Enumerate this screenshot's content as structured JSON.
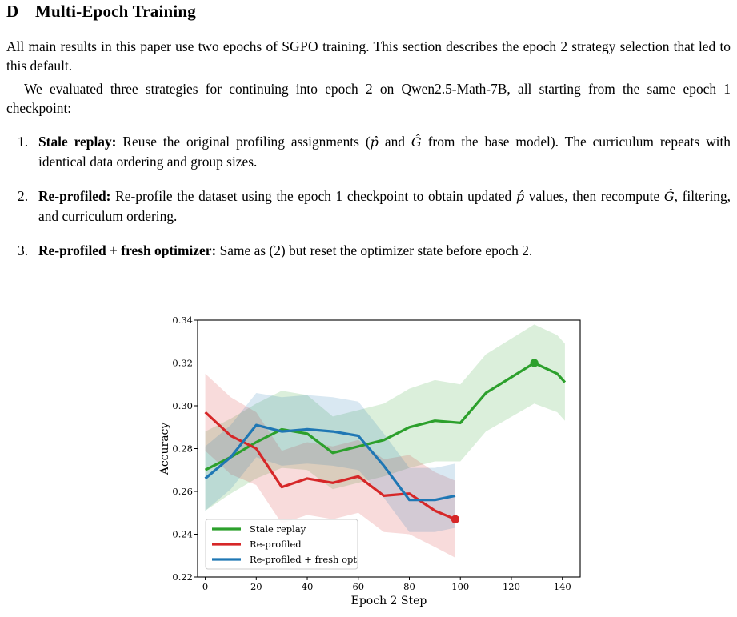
{
  "section": {
    "number": "D",
    "title": "Multi-Epoch Training"
  },
  "paragraph1": {
    "before": "All main results in this paper use two epochs of ",
    "method": "SGPO",
    "after": " training. This section describes the epoch 2 strategy selection that led to this default."
  },
  "paragraph2": "We evaluated three strategies for continuing into epoch 2 on Qwen2.5-Math-7B, all starting from the same epoch 1 checkpoint:",
  "strategies": [
    {
      "marker": "1.",
      "name": "Stale replay:",
      "t1": " Reuse the original profiling assignments (",
      "m1": "p̂",
      "t2": " and ",
      "m2": "Ĝ",
      "t3": " from the base model). The curriculum repeats with identical data ordering and group sizes."
    },
    {
      "marker": "2.",
      "name": "Re-profiled:",
      "t1": " Re-profile the dataset using the epoch 1 checkpoint to obtain updated ",
      "m1": "p̂",
      "t2": " values, then recompute ",
      "m2": "Ĝ",
      "t3": ", filtering, and curriculum ordering."
    },
    {
      "marker": "3.",
      "name": "Re-profiled + fresh optimizer:",
      "t1": " Same as (2) but reset the optimizer state before epoch 2."
    }
  ],
  "chart_data": {
    "type": "line",
    "xlabel": "Epoch 2 Step",
    "ylabel": "Accuracy",
    "xlim": [
      -3,
      147
    ],
    "ylim": [
      0.22,
      0.34
    ],
    "xticks": [
      0,
      20,
      40,
      60,
      80,
      100,
      120,
      140
    ],
    "yticks": [
      0.22,
      0.24,
      0.26,
      0.28,
      0.3,
      0.32,
      0.34
    ],
    "grid": false,
    "legend_position": "lower-left",
    "series": [
      {
        "name": "Stale replay",
        "color": "#2ca02c",
        "x": [
          0,
          10,
          20,
          30,
          40,
          50,
          60,
          70,
          80,
          90,
          100,
          110,
          129,
          138,
          141
        ],
        "y": [
          0.27,
          0.276,
          0.283,
          0.289,
          0.287,
          0.278,
          0.281,
          0.284,
          0.29,
          0.293,
          0.292,
          0.306,
          0.32,
          0.315,
          0.311
        ],
        "lower": [
          0.251,
          0.259,
          0.266,
          0.271,
          0.27,
          0.261,
          0.264,
          0.267,
          0.271,
          0.274,
          0.274,
          0.288,
          0.301,
          0.297,
          0.293
        ],
        "upper": [
          0.288,
          0.294,
          0.301,
          0.307,
          0.305,
          0.295,
          0.298,
          0.301,
          0.308,
          0.312,
          0.31,
          0.324,
          0.338,
          0.333,
          0.329
        ],
        "marker_at_end_index": 12
      },
      {
        "name": "Re-profiled",
        "color": "#d62728",
        "x": [
          0,
          10,
          20,
          30,
          40,
          50,
          60,
          70,
          80,
          90,
          98
        ],
        "y": [
          0.297,
          0.286,
          0.28,
          0.262,
          0.266,
          0.264,
          0.267,
          0.258,
          0.259,
          0.251,
          0.247
        ],
        "lower": [
          0.279,
          0.268,
          0.263,
          0.245,
          0.249,
          0.247,
          0.25,
          0.241,
          0.24,
          0.234,
          0.229
        ],
        "upper": [
          0.315,
          0.304,
          0.297,
          0.279,
          0.283,
          0.281,
          0.284,
          0.275,
          0.277,
          0.269,
          0.265
        ],
        "marker_at_end_index": 10
      },
      {
        "name": "Re-profiled + fresh opt",
        "color": "#1f77b4",
        "x": [
          0,
          10,
          20,
          30,
          40,
          50,
          60,
          70,
          80,
          90,
          98
        ],
        "y": [
          0.266,
          0.276,
          0.291,
          0.288,
          0.289,
          0.288,
          0.286,
          0.272,
          0.256,
          0.256,
          0.258
        ],
        "lower": [
          0.251,
          0.261,
          0.276,
          0.272,
          0.273,
          0.272,
          0.27,
          0.257,
          0.241,
          0.241,
          0.243
        ],
        "upper": [
          0.281,
          0.291,
          0.306,
          0.304,
          0.305,
          0.304,
          0.302,
          0.287,
          0.271,
          0.271,
          0.273
        ]
      }
    ]
  }
}
